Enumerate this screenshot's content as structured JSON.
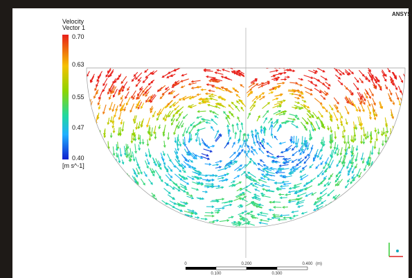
{
  "legend": {
    "title": [
      "Velocity",
      "Vector 1"
    ],
    "labels": [
      "0.70",
      "0.63",
      "0.55",
      "0.47",
      "0.40"
    ],
    "unit": "[m s^-1]"
  },
  "logo": "ANSYS",
  "scale_bar": {
    "top_labels": [
      "0",
      "0.200",
      "0.400",
      "(m)"
    ],
    "bottom_labels": [
      "0.100",
      "0.300"
    ]
  }
}
